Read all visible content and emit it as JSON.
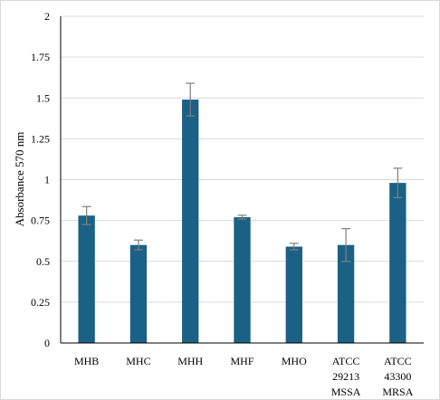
{
  "chart_data": {
    "type": "bar",
    "title": "",
    "xlabel": "",
    "ylabel": "Absorbance 570 nm",
    "ylim": [
      0,
      2
    ],
    "yticks": [
      "0",
      "0.25",
      "0.5",
      "0.75",
      "1",
      "1.25",
      "1.5",
      "1.75",
      "2"
    ],
    "grid": true,
    "legend": "none",
    "bar_color": "#1a6185",
    "error_color": "#7f7f7f",
    "categories": [
      [
        "MHB"
      ],
      [
        "MHC"
      ],
      [
        "MHH"
      ],
      [
        "MHF"
      ],
      [
        "MHO"
      ],
      [
        "ATCC",
        "29213",
        "MSSA"
      ],
      [
        "ATCC",
        "43300",
        "MRSA"
      ]
    ],
    "values": [
      0.78,
      0.6,
      1.49,
      0.77,
      0.59,
      0.6,
      0.98
    ],
    "errors": [
      0.055,
      0.03,
      0.1,
      0.012,
      0.02,
      0.1,
      0.09
    ]
  }
}
